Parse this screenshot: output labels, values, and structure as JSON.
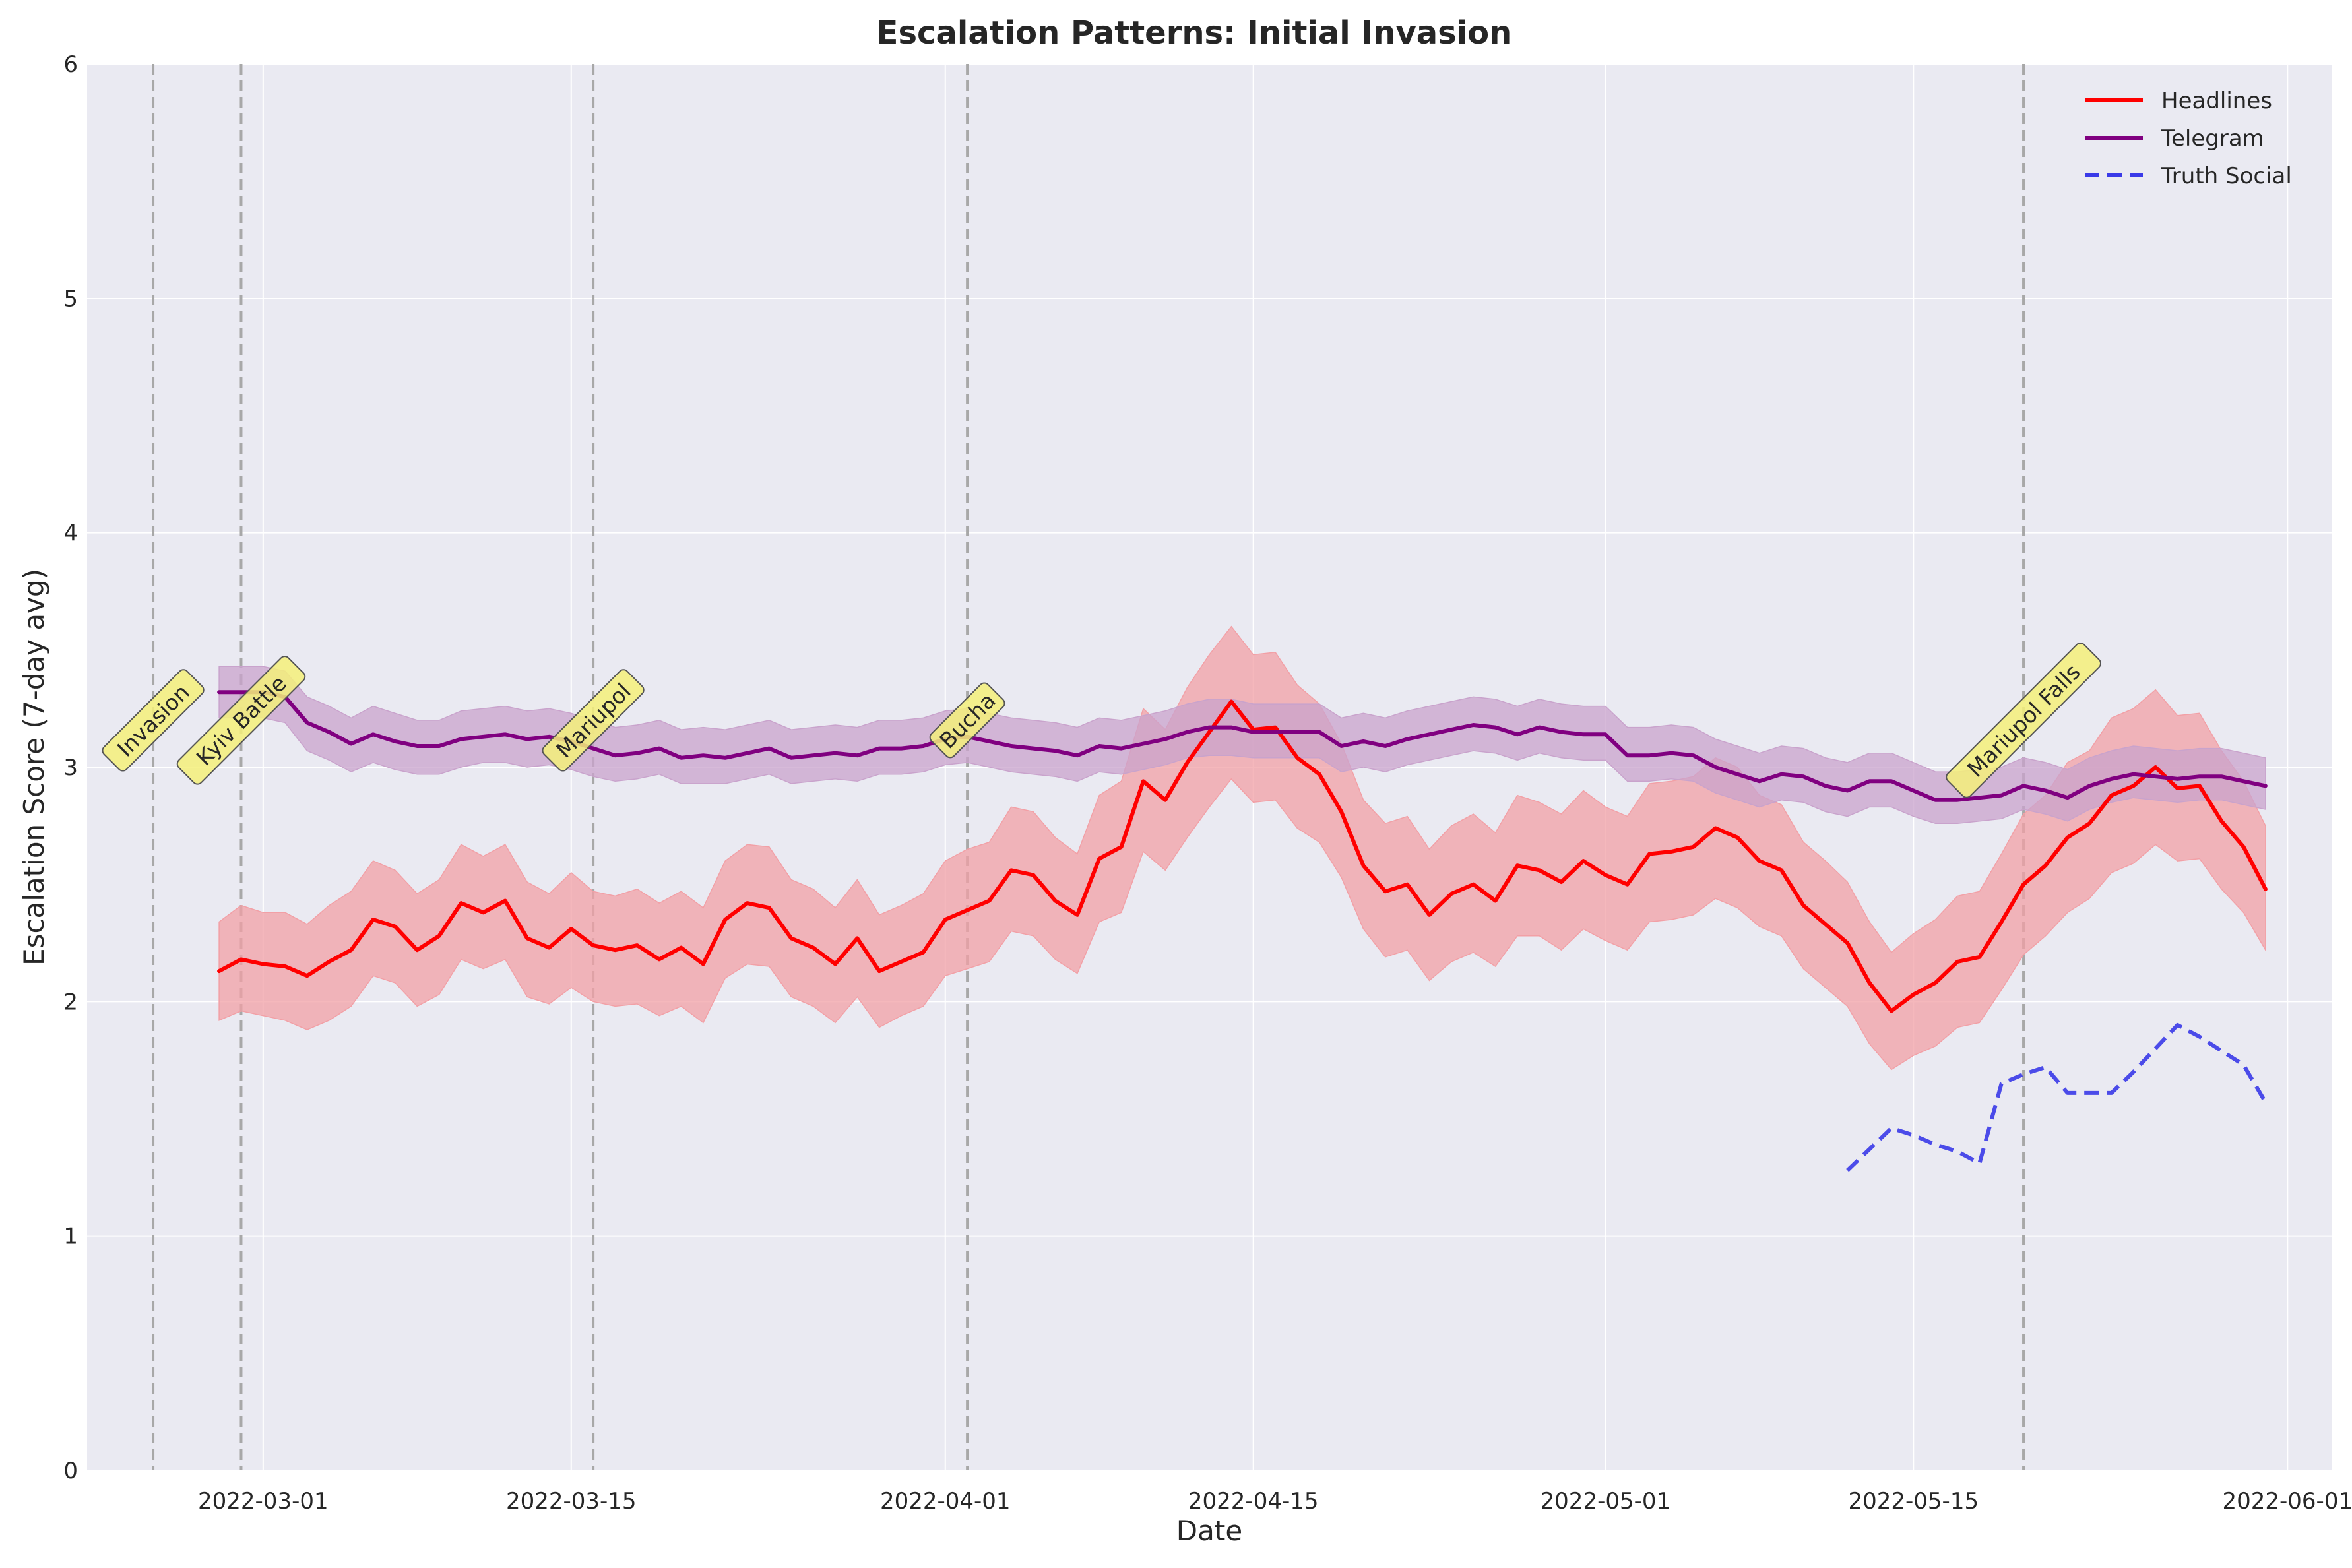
{
  "chart_data": {
    "type": "line",
    "title": "Escalation Patterns: Initial Invasion",
    "xlabel": "Date",
    "ylabel": "Escalation Score (7-day avg)",
    "xlim": [
      "2022-02-21",
      "2022-06-03"
    ],
    "ylim": [
      0,
      6
    ],
    "x_ticks": [
      "2022-03-01",
      "2022-03-15",
      "2022-04-01",
      "2022-04-15",
      "2022-05-01",
      "2022-05-15",
      "2022-06-01"
    ],
    "y_ticks": [
      0,
      1,
      2,
      3,
      4,
      5,
      6
    ],
    "grid": true,
    "legend": "top-right",
    "colors": {
      "background": "#eaeaf2",
      "headlines": "#ff0000",
      "headlines_band": "#f2a0a6",
      "telegram": "#800080",
      "telegram_band": "#c9a3cc",
      "truth_social": "#3a3ae8",
      "event_line": "#a8a8a8",
      "event_label_fill": "#f5f07a"
    },
    "events": [
      {
        "date": "2022-02-24",
        "label": "Invasion"
      },
      {
        "date": "2022-02-28",
        "label": "Kyiv Battle"
      },
      {
        "date": "2022-03-16",
        "label": "Mariupol"
      },
      {
        "date": "2022-04-02",
        "label": "Bucha"
      },
      {
        "date": "2022-05-20",
        "label": "Mariupol Falls"
      }
    ],
    "series": [
      {
        "name": "Headlines",
        "style": "solid",
        "start": "2022-02-27",
        "values": [
          2.13,
          2.18,
          2.16,
          2.15,
          2.11,
          2.17,
          2.22,
          2.35,
          2.32,
          2.22,
          2.28,
          2.42,
          2.38,
          2.43,
          2.27,
          2.23,
          2.31,
          2.24,
          2.22,
          2.24,
          2.18,
          2.23,
          2.16,
          2.35,
          2.42,
          2.4,
          2.27,
          2.23,
          2.16,
          2.27,
          2.13,
          2.17,
          2.21,
          2.35,
          2.39,
          2.43,
          2.56,
          2.54,
          2.43,
          2.37,
          2.61,
          2.66,
          2.94,
          2.86,
          3.02,
          3.15,
          3.28,
          3.16,
          3.17,
          3.04,
          2.97,
          2.81,
          2.58,
          2.47,
          2.5,
          2.37,
          2.46,
          2.5,
          2.43,
          2.58,
          2.56,
          2.51,
          2.6,
          2.54,
          2.5,
          2.63,
          2.64,
          2.66,
          2.74,
          2.7,
          2.6,
          2.56,
          2.41,
          2.33,
          2.25,
          2.08,
          1.96,
          2.03,
          2.08,
          2.17,
          2.19,
          2.34,
          2.5,
          2.58,
          2.7,
          2.76,
          2.88,
          2.92,
          3.0,
          2.91,
          2.92,
          2.77,
          2.66,
          2.48
        ],
        "band_lower": [
          1.92,
          1.96,
          1.94,
          1.92,
          1.88,
          1.92,
          1.98,
          2.11,
          2.08,
          1.98,
          2.03,
          2.18,
          2.14,
          2.18,
          2.02,
          1.99,
          2.06,
          2.0,
          1.98,
          1.99,
          1.94,
          1.98,
          1.91,
          2.1,
          2.16,
          2.15,
          2.02,
          1.98,
          1.91,
          2.02,
          1.89,
          1.94,
          1.98,
          2.11,
          2.14,
          2.17,
          2.3,
          2.28,
          2.18,
          2.12,
          2.34,
          2.38,
          2.64,
          2.56,
          2.7,
          2.83,
          2.95,
          2.85,
          2.86,
          2.74,
          2.68,
          2.53,
          2.31,
          2.19,
          2.22,
          2.09,
          2.17,
          2.21,
          2.15,
          2.28,
          2.28,
          2.22,
          2.31,
          2.26,
          2.22,
          2.34,
          2.35,
          2.37,
          2.44,
          2.4,
          2.32,
          2.28,
          2.14,
          2.06,
          1.98,
          1.82,
          1.71,
          1.77,
          1.81,
          1.89,
          1.91,
          2.05,
          2.2,
          2.28,
          2.38,
          2.44,
          2.55,
          2.59,
          2.67,
          2.6,
          2.61,
          2.48,
          2.38,
          2.22
        ],
        "band_upper": [
          2.34,
          2.41,
          2.38,
          2.38,
          2.33,
          2.41,
          2.47,
          2.6,
          2.56,
          2.46,
          2.52,
          2.67,
          2.62,
          2.67,
          2.51,
          2.46,
          2.55,
          2.47,
          2.45,
          2.48,
          2.42,
          2.47,
          2.4,
          2.6,
          2.67,
          2.66,
          2.52,
          2.48,
          2.4,
          2.52,
          2.37,
          2.41,
          2.46,
          2.6,
          2.65,
          2.68,
          2.83,
          2.81,
          2.7,
          2.63,
          2.88,
          2.94,
          3.25,
          3.16,
          3.34,
          3.48,
          3.6,
          3.48,
          3.49,
          3.35,
          3.27,
          3.1,
          2.86,
          2.76,
          2.79,
          2.65,
          2.75,
          2.8,
          2.72,
          2.88,
          2.85,
          2.8,
          2.9,
          2.83,
          2.79,
          2.93,
          2.94,
          2.96,
          3.04,
          3.0,
          2.88,
          2.84,
          2.68,
          2.6,
          2.51,
          2.34,
          2.21,
          2.29,
          2.35,
          2.45,
          2.47,
          2.63,
          2.8,
          2.88,
          3.02,
          3.07,
          3.21,
          3.25,
          3.33,
          3.22,
          3.23,
          3.07,
          2.94,
          2.75
        ]
      },
      {
        "name": "Telegram",
        "style": "solid",
        "start": "2022-02-27",
        "values": [
          3.32,
          3.32,
          3.32,
          3.3,
          3.19,
          3.15,
          3.1,
          3.14,
          3.11,
          3.09,
          3.09,
          3.12,
          3.13,
          3.14,
          3.12,
          3.13,
          3.11,
          3.08,
          3.05,
          3.06,
          3.08,
          3.04,
          3.05,
          3.04,
          3.06,
          3.08,
          3.04,
          3.05,
          3.06,
          3.05,
          3.08,
          3.08,
          3.09,
          3.12,
          3.13,
          3.11,
          3.09,
          3.08,
          3.07,
          3.05,
          3.09,
          3.08,
          3.1,
          3.12,
          3.15,
          3.17,
          3.17,
          3.15,
          3.15,
          3.15,
          3.15,
          3.09,
          3.11,
          3.09,
          3.12,
          3.14,
          3.16,
          3.18,
          3.17,
          3.14,
          3.17,
          3.15,
          3.14,
          3.14,
          3.05,
          3.05,
          3.06,
          3.05,
          3.0,
          2.97,
          2.94,
          2.97,
          2.96,
          2.92,
          2.9,
          2.94,
          2.94,
          2.9,
          2.86,
          2.86,
          2.87,
          2.88,
          2.92,
          2.9,
          2.87,
          2.92,
          2.95,
          2.97,
          2.96,
          2.95,
          2.96,
          2.96,
          2.94,
          2.92
        ],
        "band_lower": [
          3.21,
          3.21,
          3.21,
          3.19,
          3.07,
          3.03,
          2.98,
          3.02,
          2.99,
          2.97,
          2.97,
          3.0,
          3.02,
          3.02,
          3.0,
          3.01,
          2.99,
          2.96,
          2.94,
          2.95,
          2.97,
          2.93,
          2.93,
          2.93,
          2.95,
          2.97,
          2.93,
          2.94,
          2.95,
          2.94,
          2.97,
          2.97,
          2.98,
          3.01,
          3.02,
          3.0,
          2.98,
          2.97,
          2.96,
          2.94,
          2.98,
          2.97,
          2.99,
          3.01,
          3.04,
          3.05,
          3.05,
          3.04,
          3.04,
          3.04,
          3.04,
          2.98,
          3.0,
          2.98,
          3.01,
          3.03,
          3.05,
          3.07,
          3.06,
          3.03,
          3.06,
          3.04,
          3.03,
          3.03,
          2.94,
          2.94,
          2.95,
          2.94,
          2.89,
          2.86,
          2.83,
          2.86,
          2.85,
          2.81,
          2.79,
          2.83,
          2.83,
          2.79,
          2.76,
          2.76,
          2.77,
          2.78,
          2.82,
          2.8,
          2.77,
          2.82,
          2.85,
          2.87,
          2.86,
          2.85,
          2.86,
          2.86,
          2.84,
          2.82
        ],
        "band_upper": [
          3.43,
          3.43,
          3.43,
          3.41,
          3.3,
          3.26,
          3.21,
          3.26,
          3.23,
          3.2,
          3.2,
          3.24,
          3.25,
          3.26,
          3.24,
          3.25,
          3.23,
          3.2,
          3.17,
          3.18,
          3.2,
          3.16,
          3.17,
          3.16,
          3.18,
          3.2,
          3.16,
          3.17,
          3.18,
          3.17,
          3.2,
          3.2,
          3.21,
          3.24,
          3.25,
          3.23,
          3.21,
          3.2,
          3.19,
          3.17,
          3.21,
          3.2,
          3.22,
          3.24,
          3.27,
          3.29,
          3.29,
          3.27,
          3.27,
          3.27,
          3.27,
          3.21,
          3.23,
          3.21,
          3.24,
          3.26,
          3.28,
          3.3,
          3.29,
          3.26,
          3.29,
          3.27,
          3.26,
          3.26,
          3.17,
          3.17,
          3.18,
          3.17,
          3.12,
          3.09,
          3.06,
          3.09,
          3.08,
          3.04,
          3.02,
          3.06,
          3.06,
          3.02,
          2.98,
          2.98,
          2.99,
          3.0,
          3.04,
          3.02,
          2.99,
          3.04,
          3.07,
          3.09,
          3.08,
          3.07,
          3.08,
          3.08,
          3.06,
          3.04
        ]
      },
      {
        "name": "Truth Social",
        "style": "dashed",
        "start": "2022-05-12",
        "values": [
          1.28,
          1.37,
          1.46,
          1.43,
          1.39,
          1.36,
          1.31,
          1.65,
          1.69,
          1.72,
          1.61,
          1.61,
          1.61,
          1.7,
          1.8,
          1.9,
          1.85,
          1.79,
          1.73,
          1.57
        ]
      }
    ]
  }
}
